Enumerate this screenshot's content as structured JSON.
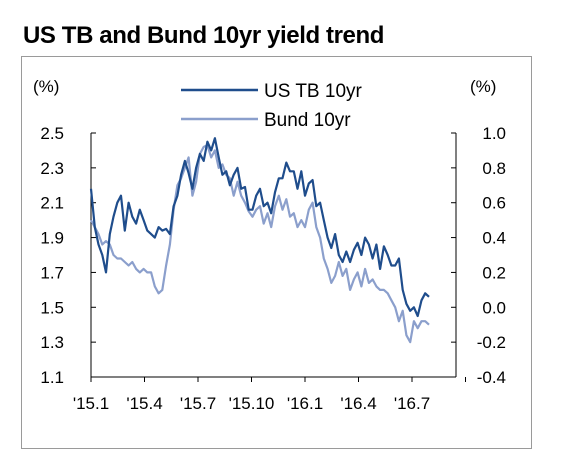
{
  "title": "US TB and Bund 10yr yield trend",
  "colors": {
    "us_tb": "#1f4d8c",
    "bund": "#8b9fcc",
    "axis": "#000000"
  },
  "chart_data": {
    "type": "line",
    "title": "US TB and Bund 10yr yield trend",
    "left_axis_unit": "(%)",
    "right_axis_unit": "(%)",
    "left_ylim": [
      1.1,
      2.5
    ],
    "right_ylim": [
      -0.4,
      1.0
    ],
    "left_ticks": [
      "2.5",
      "2.3",
      "2.1",
      "1.9",
      "1.7",
      "1.5",
      "1.3",
      "1.1"
    ],
    "right_ticks": [
      "1.0",
      "0.8",
      "0.6",
      "0.4",
      "0.2",
      "0.0",
      "-0.2",
      "-0.4"
    ],
    "x_ticks": [
      "'15.1",
      "'15.4",
      "'15.7",
      "'15.10",
      "'16.1",
      "'16.4",
      "'16.7"
    ],
    "grid": false,
    "legend_position": "top-center",
    "series": [
      {
        "name": "US TB 10yr",
        "axis": "left",
        "x": [
          2015.0,
          2015.02,
          2015.04,
          2015.06,
          2015.08,
          2015.1,
          2015.12,
          2015.14,
          2015.16,
          2015.18,
          2015.2,
          2015.22,
          2015.24,
          2015.26,
          2015.28,
          2015.3,
          2015.32,
          2015.34,
          2015.36,
          2015.38,
          2015.4,
          2015.42,
          2015.44,
          2015.46,
          2015.48,
          2015.5,
          2015.52,
          2015.54,
          2015.56,
          2015.58,
          2015.6,
          2015.62,
          2015.64,
          2015.66,
          2015.68,
          2015.7,
          2015.72,
          2015.74,
          2015.76,
          2015.78,
          2015.8,
          2015.82,
          2015.84,
          2015.86,
          2015.88,
          2015.9,
          2015.92,
          2015.94,
          2015.96,
          2015.98,
          2016.0,
          2016.02,
          2016.04,
          2016.06,
          2016.08,
          2016.1,
          2016.12,
          2016.14,
          2016.16,
          2016.18,
          2016.2,
          2016.22,
          2016.24,
          2016.26,
          2016.28,
          2016.3,
          2016.32,
          2016.34,
          2016.36,
          2016.38,
          2016.4,
          2016.42,
          2016.44,
          2016.46,
          2016.48,
          2016.5,
          2016.52,
          2016.54,
          2016.56,
          2016.58,
          2016.6,
          2016.62,
          2016.64,
          2016.66,
          2016.68,
          2016.7,
          2016.72,
          2016.74,
          2016.76,
          2016.78,
          2016.8
        ],
        "y": [
          2.18,
          1.96,
          1.86,
          1.8,
          1.7,
          1.92,
          2.02,
          2.1,
          2.14,
          1.94,
          2.1,
          2.02,
          1.98,
          2.06,
          2.0,
          1.94,
          1.92,
          1.9,
          1.96,
          1.94,
          1.95,
          1.92,
          2.08,
          2.14,
          2.26,
          2.34,
          2.27,
          2.18,
          2.3,
          2.38,
          2.34,
          2.45,
          2.4,
          2.47,
          2.36,
          2.26,
          2.28,
          2.2,
          2.26,
          2.3,
          2.18,
          2.19,
          2.06,
          2.06,
          2.14,
          2.18,
          2.08,
          2.1,
          2.04,
          2.16,
          2.24,
          2.24,
          2.33,
          2.28,
          2.28,
          2.18,
          2.28,
          2.14,
          2.21,
          2.23,
          2.08,
          2.1,
          2.0,
          1.9,
          1.84,
          1.92,
          1.8,
          1.76,
          1.82,
          1.76,
          1.83,
          1.87,
          1.8,
          1.9,
          1.86,
          1.78,
          1.86,
          1.72,
          1.85,
          1.8,
          1.74,
          1.74,
          1.78,
          1.6,
          1.52,
          1.48,
          1.5,
          1.45,
          1.54,
          1.58,
          1.56
        ]
      },
      {
        "name": "Bund 10yr",
        "axis": "right",
        "x": [
          2015.0,
          2015.02,
          2015.04,
          2015.06,
          2015.08,
          2015.1,
          2015.12,
          2015.14,
          2015.16,
          2015.18,
          2015.2,
          2015.22,
          2015.24,
          2015.26,
          2015.28,
          2015.3,
          2015.32,
          2015.34,
          2015.36,
          2015.38,
          2015.4,
          2015.42,
          2015.44,
          2015.46,
          2015.48,
          2015.5,
          2015.52,
          2015.54,
          2015.56,
          2015.58,
          2015.6,
          2015.62,
          2015.64,
          2015.66,
          2015.68,
          2015.7,
          2015.72,
          2015.74,
          2015.76,
          2015.78,
          2015.8,
          2015.82,
          2015.84,
          2015.86,
          2015.88,
          2015.9,
          2015.92,
          2015.94,
          2015.96,
          2015.98,
          2016.0,
          2016.02,
          2016.04,
          2016.06,
          2016.08,
          2016.1,
          2016.12,
          2016.14,
          2016.16,
          2016.18,
          2016.2,
          2016.22,
          2016.24,
          2016.26,
          2016.28,
          2016.3,
          2016.32,
          2016.34,
          2016.36,
          2016.38,
          2016.4,
          2016.42,
          2016.44,
          2016.46,
          2016.48,
          2016.5,
          2016.52,
          2016.54,
          2016.56,
          2016.58,
          2016.6,
          2016.62,
          2016.64,
          2016.66,
          2016.68,
          2016.7,
          2016.72,
          2016.74,
          2016.76,
          2016.78,
          2016.8
        ],
        "y": [
          0.5,
          0.46,
          0.42,
          0.36,
          0.38,
          0.36,
          0.3,
          0.28,
          0.28,
          0.26,
          0.24,
          0.26,
          0.22,
          0.2,
          0.22,
          0.2,
          0.2,
          0.12,
          0.08,
          0.1,
          0.24,
          0.36,
          0.56,
          0.7,
          0.74,
          0.8,
          0.86,
          0.64,
          0.72,
          0.88,
          0.92,
          0.93,
          0.86,
          0.9,
          0.8,
          0.82,
          0.76,
          0.74,
          0.64,
          0.72,
          0.64,
          0.6,
          0.55,
          0.52,
          0.56,
          0.58,
          0.48,
          0.54,
          0.46,
          0.58,
          0.64,
          0.56,
          0.62,
          0.52,
          0.54,
          0.46,
          0.5,
          0.46,
          0.56,
          0.6,
          0.46,
          0.4,
          0.28,
          0.22,
          0.14,
          0.18,
          0.26,
          0.18,
          0.22,
          0.1,
          0.16,
          0.2,
          0.12,
          0.22,
          0.14,
          0.16,
          0.12,
          0.1,
          0.1,
          0.08,
          0.04,
          0.0,
          -0.08,
          -0.02,
          -0.16,
          -0.2,
          -0.08,
          -0.12,
          -0.08,
          -0.08,
          -0.1
        ]
      }
    ]
  }
}
